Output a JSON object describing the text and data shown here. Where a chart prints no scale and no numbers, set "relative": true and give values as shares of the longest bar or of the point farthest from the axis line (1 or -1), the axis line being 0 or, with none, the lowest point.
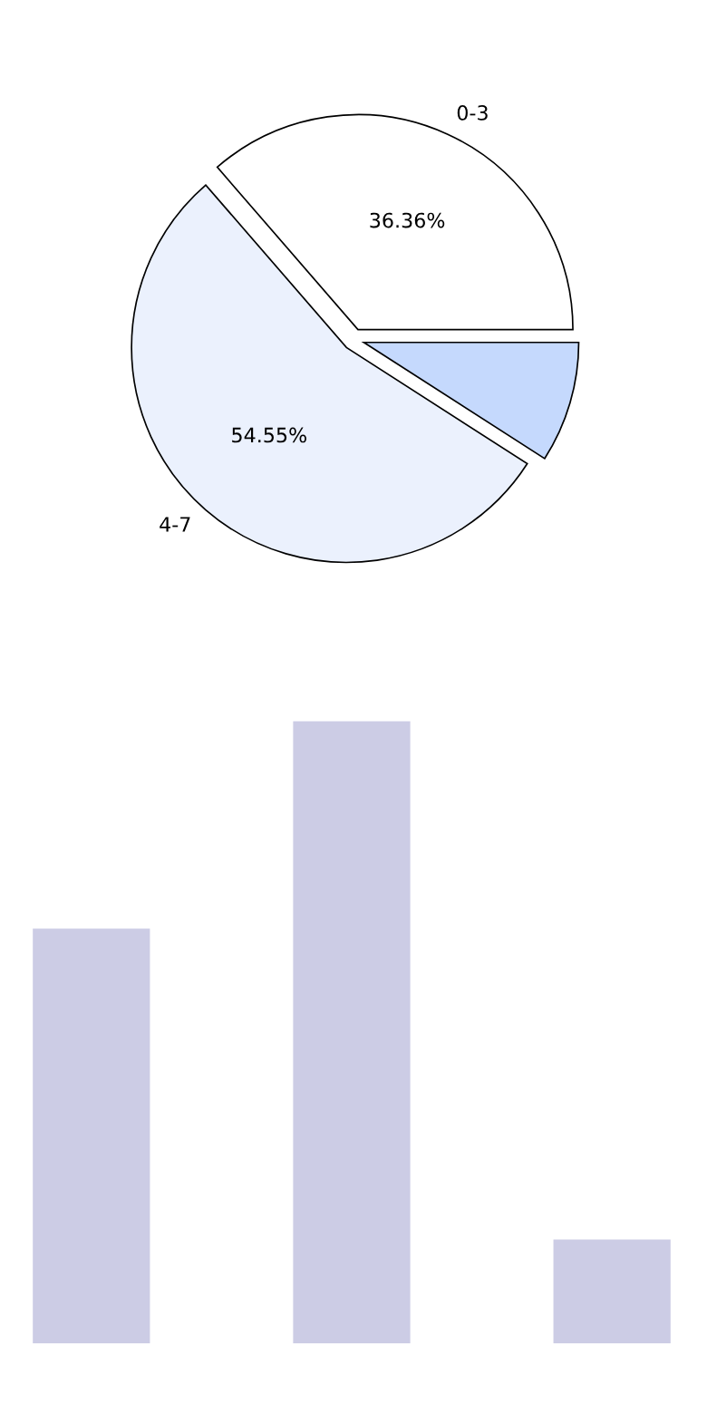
{
  "chart_data": [
    {
      "type": "pie",
      "categories": [
        "0-3",
        "4-7",
        null
      ],
      "values": [
        36.36,
        54.55,
        9.09
      ],
      "colors": [
        "#ffffff",
        "#ebf1fd",
        "#c5d9fd"
      ],
      "value_labels": [
        "36.36%",
        "54.55%",
        null
      ]
    },
    {
      "type": "bar",
      "relative": true,
      "categories": [
        null,
        null,
        null
      ],
      "values": [
        0.6667,
        1,
        0.1667
      ],
      "color": "#ccccE5"
    }
  ]
}
